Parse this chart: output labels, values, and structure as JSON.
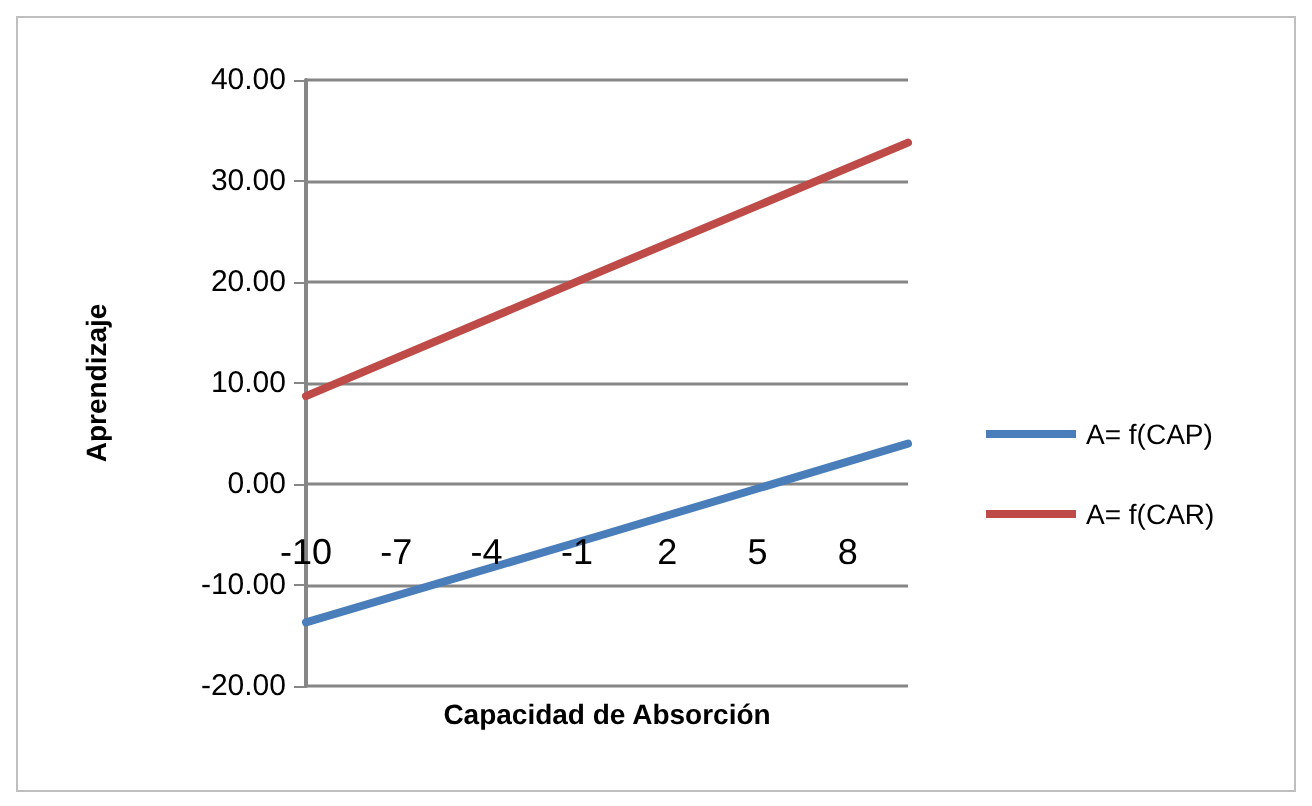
{
  "chart_data": {
    "type": "line",
    "xlabel": "Capacidad de Absorción",
    "ylabel": "Aprendizaje",
    "x": [
      -10,
      0,
      10
    ],
    "series": [
      {
        "name": "A= f(CAP)",
        "color": "#4a7ebb",
        "values": [
          -13.7,
          -4.9,
          4.0
        ]
      },
      {
        "name": "A= f(CAR)",
        "color": "#be4b48",
        "values": [
          8.7,
          21.3,
          33.8
        ]
      }
    ],
    "xlim": [
      -10,
      10
    ],
    "xticks": [
      -10,
      -7,
      -4,
      -1,
      2,
      5,
      8
    ],
    "ylim": [
      -20,
      40
    ],
    "yticks": [
      {
        "value": -20,
        "label": "-20.00"
      },
      {
        "value": -10,
        "label": "-10.00"
      },
      {
        "value": 0,
        "label": "0.00"
      },
      {
        "value": 10,
        "label": "10.00"
      },
      {
        "value": 20,
        "label": "20.00"
      },
      {
        "value": 30,
        "label": "30.00"
      },
      {
        "value": 40,
        "label": "40.00"
      }
    ],
    "grid": "y",
    "legend": "right",
    "marker": "none",
    "line_style": "solid"
  }
}
